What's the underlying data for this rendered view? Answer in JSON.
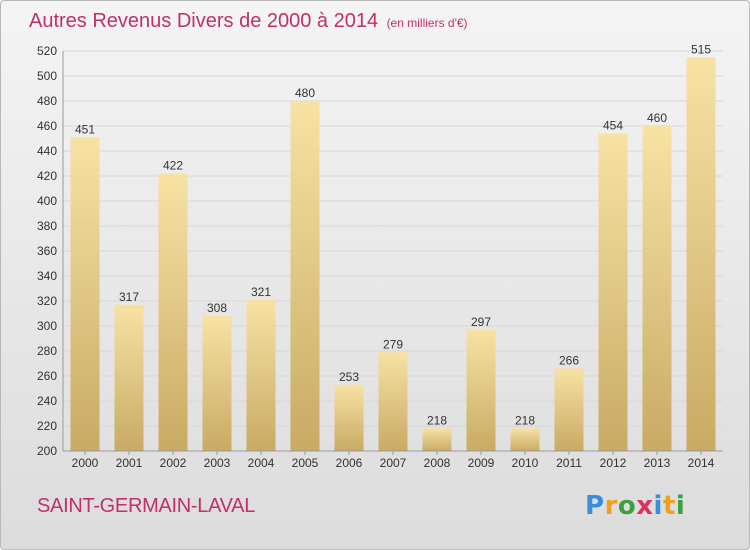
{
  "header": {
    "title": "Autres Revenus Divers de 2000 à 2014",
    "unit": "(en milliers d'€)"
  },
  "footer": {
    "commune": "SAINT-GERMAIN-LAVAL",
    "brand_letters": [
      "P",
      "r",
      "o",
      "x",
      "i",
      "t",
      "i"
    ],
    "brand_colors": [
      "#3a8ddb",
      "#f0a020",
      "#3aa040",
      "#e03060",
      "#3a8ddb",
      "#f0a020",
      "#3aa040"
    ]
  },
  "colors": {
    "title": "#c0306a",
    "bar_top": "#f7e2a4",
    "bar_bottom": "#c8ab63",
    "grid": "#d7d7d7",
    "axis_text": "#333333"
  },
  "chart_data": {
    "type": "bar",
    "categories": [
      "2000",
      "2001",
      "2002",
      "2003",
      "2004",
      "2005",
      "2006",
      "2007",
      "2008",
      "2009",
      "2010",
      "2011",
      "2012",
      "2013",
      "2014"
    ],
    "values": [
      451,
      317,
      422,
      308,
      321,
      480,
      253,
      279,
      218,
      297,
      218,
      266,
      454,
      460,
      515
    ],
    "ylim": [
      200,
      520
    ],
    "yticks": [
      200,
      220,
      240,
      260,
      280,
      300,
      320,
      340,
      360,
      380,
      400,
      420,
      440,
      460,
      480,
      500,
      520
    ],
    "grid": true,
    "data_labels": true
  }
}
